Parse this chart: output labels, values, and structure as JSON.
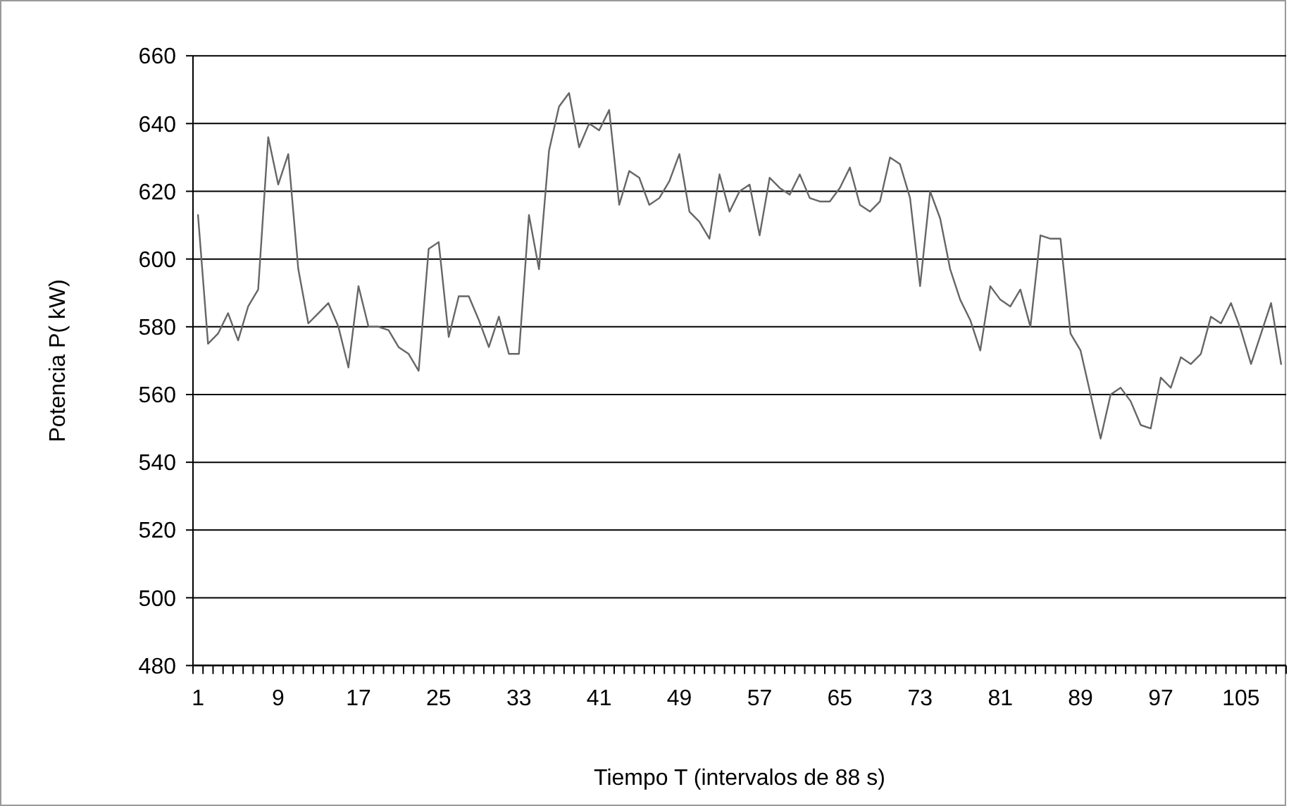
{
  "chart_data": {
    "type": "line",
    "xlabel": "Tiempo T (intervalos de 88 s)",
    "ylabel": "Potencia P( kW)",
    "categories": [
      "1",
      null,
      null,
      null,
      null,
      null,
      null,
      null,
      "9",
      null,
      null,
      null,
      null,
      null,
      null,
      null,
      "17",
      null,
      null,
      null,
      null,
      null,
      null,
      null,
      "25",
      null,
      null,
      null,
      null,
      null,
      null,
      null,
      "33",
      null,
      null,
      null,
      null,
      null,
      null,
      null,
      "41",
      null,
      null,
      null,
      null,
      null,
      null,
      null,
      "49",
      null,
      null,
      null,
      null,
      null,
      null,
      null,
      "57",
      null,
      null,
      null,
      null,
      null,
      null,
      null,
      "65",
      null,
      null,
      null,
      null,
      null,
      null,
      null,
      "73",
      null,
      null,
      null,
      null,
      null,
      null,
      null,
      "81",
      null,
      null,
      null,
      null,
      null,
      null,
      null,
      "89",
      null,
      null,
      null,
      null,
      null,
      null,
      null,
      "97",
      null,
      null,
      null,
      null,
      null,
      null,
      null,
      "105",
      null,
      null,
      null,
      null
    ],
    "series": [
      {
        "color": "#666666",
        "values": [
          613,
          575,
          578,
          584,
          576,
          586,
          591,
          636,
          622,
          631,
          597,
          581,
          584,
          587,
          580,
          568,
          592,
          580,
          580,
          579,
          574,
          572,
          567,
          603,
          605,
          577,
          589,
          589,
          582,
          574,
          583,
          572,
          572,
          613,
          597,
          632,
          645,
          649,
          633,
          640,
          638,
          644,
          616,
          626,
          624,
          616,
          618,
          623,
          631,
          614,
          611,
          606,
          625,
          614,
          620,
          622,
          607,
          624,
          621,
          619,
          625,
          618,
          617,
          617,
          621,
          627,
          616,
          614,
          617,
          630,
          628,
          618,
          592,
          620,
          612,
          597,
          588,
          582,
          573,
          592,
          588,
          586,
          591,
          580,
          607,
          606,
          606,
          578,
          573,
          560,
          547,
          560,
          562,
          558,
          551,
          550,
          565,
          562,
          571,
          569,
          572,
          583,
          581,
          587,
          579,
          569,
          578,
          587,
          569
        ]
      }
    ],
    "ylim": [
      480,
      660
    ],
    "yticks": [
      480,
      500,
      520,
      540,
      560,
      580,
      600,
      620,
      640,
      660
    ],
    "grid": "y",
    "marker": "none",
    "line_style": "solid"
  }
}
